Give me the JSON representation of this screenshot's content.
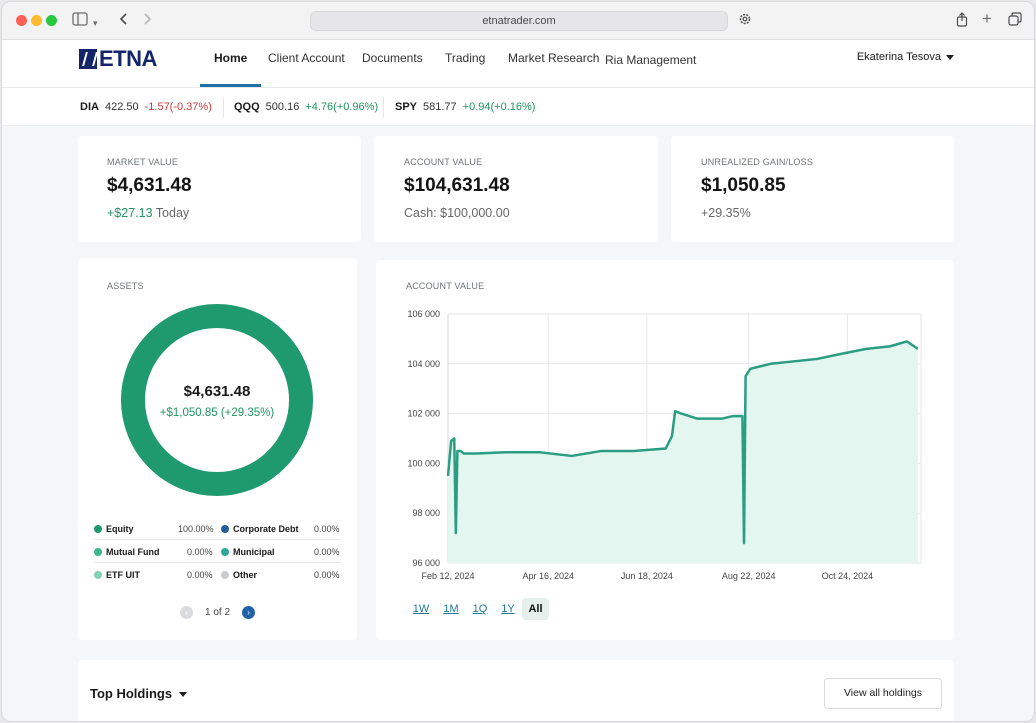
{
  "browser": {
    "url": "etnatrader.com"
  },
  "nav": {
    "logo": "ETNA",
    "items": [
      "Home",
      "Client Account",
      "Documents",
      "Trading",
      "Market Research",
      "Ria Management"
    ],
    "user": "Ekaterina Tesova"
  },
  "ticker": [
    {
      "symbol": "DIA",
      "price": "422.50",
      "change": "-1.57(-0.37%)",
      "direction": "down"
    },
    {
      "symbol": "QQQ",
      "price": "500.16",
      "change": "+4.76(+0.96%)",
      "direction": "up"
    },
    {
      "symbol": "SPY",
      "price": "581.77",
      "change": "+0.94(+0.16%)",
      "direction": "up"
    }
  ],
  "summary": {
    "market_value": {
      "label": "MARKET VALUE",
      "value": "$4,631.48",
      "change": "+$27.13",
      "change_suffix": " Today"
    },
    "account_value": {
      "label": "ACCOUNT VALUE",
      "value": "$104,631.48",
      "sub": "Cash: $100,000.00"
    },
    "unrealized": {
      "label": "UNREALIZED GAIN/LOSS",
      "value": "$1,050.85",
      "sub": "+29.35%"
    }
  },
  "assets": {
    "label": "ASSETS",
    "center_value": "$4,631.48",
    "center_sub": "+$1,050.85 (+29.35%)",
    "donut_color": "#1f9a6e",
    "legend": [
      {
        "name": "Equity",
        "pct": "100.00%",
        "color": "#1f9a6e"
      },
      {
        "name": "Corporate Debt",
        "pct": "0.00%",
        "color": "#1f5f9a"
      },
      {
        "name": "Mutual Fund",
        "pct": "0.00%",
        "color": "#3fb58c"
      },
      {
        "name": "Municipal",
        "pct": "0.00%",
        "color": "#2fa7a0"
      },
      {
        "name": "ETF UIT",
        "pct": "0.00%",
        "color": "#7fd4b3"
      },
      {
        "name": "Other",
        "pct": "0.00%",
        "color": "#c9cdd0"
      }
    ],
    "pager": "1 of 2"
  },
  "account_chart": {
    "label": "ACCOUNT VALUE",
    "ranges": [
      "1W",
      "1M",
      "1Q",
      "1Y",
      "All"
    ],
    "active_range": "All"
  },
  "chart_data": {
    "type": "area",
    "title": "",
    "xlabel": "",
    "ylabel": "",
    "ylim": [
      96000,
      106000
    ],
    "yticks": [
      "106 000",
      "104 000",
      "102 000",
      "100 000",
      "98 000",
      "96 000"
    ],
    "xticks": [
      "Feb 12, 2024",
      "Apr 16, 2024",
      "Jun 18, 2024",
      "Aug 22, 2024",
      "Oct 24, 2024"
    ],
    "series": [
      {
        "color": "#2a9d83",
        "x": [
          "2024-02-12",
          "2024-02-14",
          "2024-02-16",
          "2024-02-17",
          "2024-02-18",
          "2024-02-20",
          "2024-02-22",
          "2024-03-01",
          "2024-03-20",
          "2024-04-10",
          "2024-05-01",
          "2024-05-20",
          "2024-06-10",
          "2024-06-30",
          "2024-07-04",
          "2024-07-06",
          "2024-07-10",
          "2024-07-20",
          "2024-07-30",
          "2024-08-05",
          "2024-08-12",
          "2024-08-18",
          "2024-08-19",
          "2024-08-20",
          "2024-08-21",
          "2024-08-23",
          "2024-09-05",
          "2024-09-20",
          "2024-10-05",
          "2024-10-20",
          "2024-11-05",
          "2024-11-20",
          "2024-12-01",
          "2024-12-08"
        ],
        "values": [
          99500,
          100900,
          101000,
          97200,
          100500,
          100500,
          100400,
          100400,
          100450,
          100450,
          100300,
          100500,
          100500,
          100600,
          101100,
          102100,
          102000,
          101800,
          101800,
          101800,
          101900,
          101900,
          96800,
          103500,
          103600,
          103800,
          104000,
          104100,
          104200,
          104400,
          104600,
          104700,
          104900,
          104600
        ]
      }
    ]
  },
  "holdings": {
    "title": "Top Holdings",
    "view_all": "View all holdings"
  }
}
